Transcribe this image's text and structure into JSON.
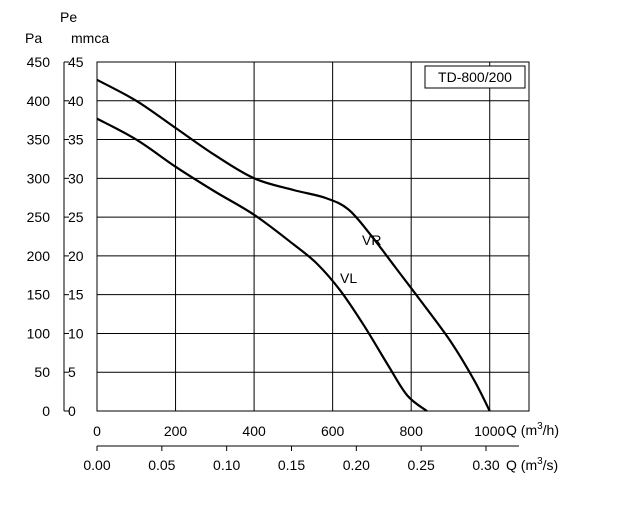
{
  "chart_data": {
    "type": "line",
    "title": "TD-800/200",
    "left_axis_pa": {
      "label": "Pa",
      "range": [
        0,
        450
      ],
      "ticks": [
        "0",
        "50",
        "100",
        "150",
        "200",
        "250",
        "300",
        "350",
        "400",
        "450"
      ]
    },
    "left_axis_mmca": {
      "label_top": "Pe",
      "label": "mmca",
      "range": [
        0,
        45
      ],
      "ticks": [
        "0",
        "5",
        "10",
        "15",
        "20",
        "25",
        "30",
        "35",
        "40",
        "45"
      ]
    },
    "x_axis_m3h": {
      "label_prefix": "Q (m",
      "label_sup": "3",
      "label_suffix": "/h)",
      "range": [
        0,
        1100
      ],
      "ticks": [
        "0",
        "200",
        "400",
        "600",
        "800",
        "1000"
      ]
    },
    "x_axis_m3s": {
      "label_prefix": "Q (m",
      "label_sup": "3",
      "label_suffix": "/s)",
      "ticks": [
        "0.00",
        "0.05",
        "0.10",
        "0.15",
        "0.20",
        "0.25",
        "0.30"
      ]
    },
    "grid": true,
    "series": [
      {
        "name": "VR",
        "x": [
          0,
          100,
          200,
          300,
          400,
          500,
          580,
          640,
          700,
          760,
          820,
          900,
          960,
          1000
        ],
        "y": [
          427,
          400,
          365,
          330,
          300,
          285,
          275,
          260,
          225,
          185,
          145,
          90,
          40,
          0
        ]
      },
      {
        "name": "VL",
        "x": [
          0,
          100,
          200,
          300,
          400,
          500,
          560,
          620,
          680,
          740,
          790,
          840
        ],
        "y": [
          377,
          350,
          315,
          283,
          253,
          215,
          190,
          155,
          110,
          60,
          20,
          0
        ]
      }
    ]
  }
}
